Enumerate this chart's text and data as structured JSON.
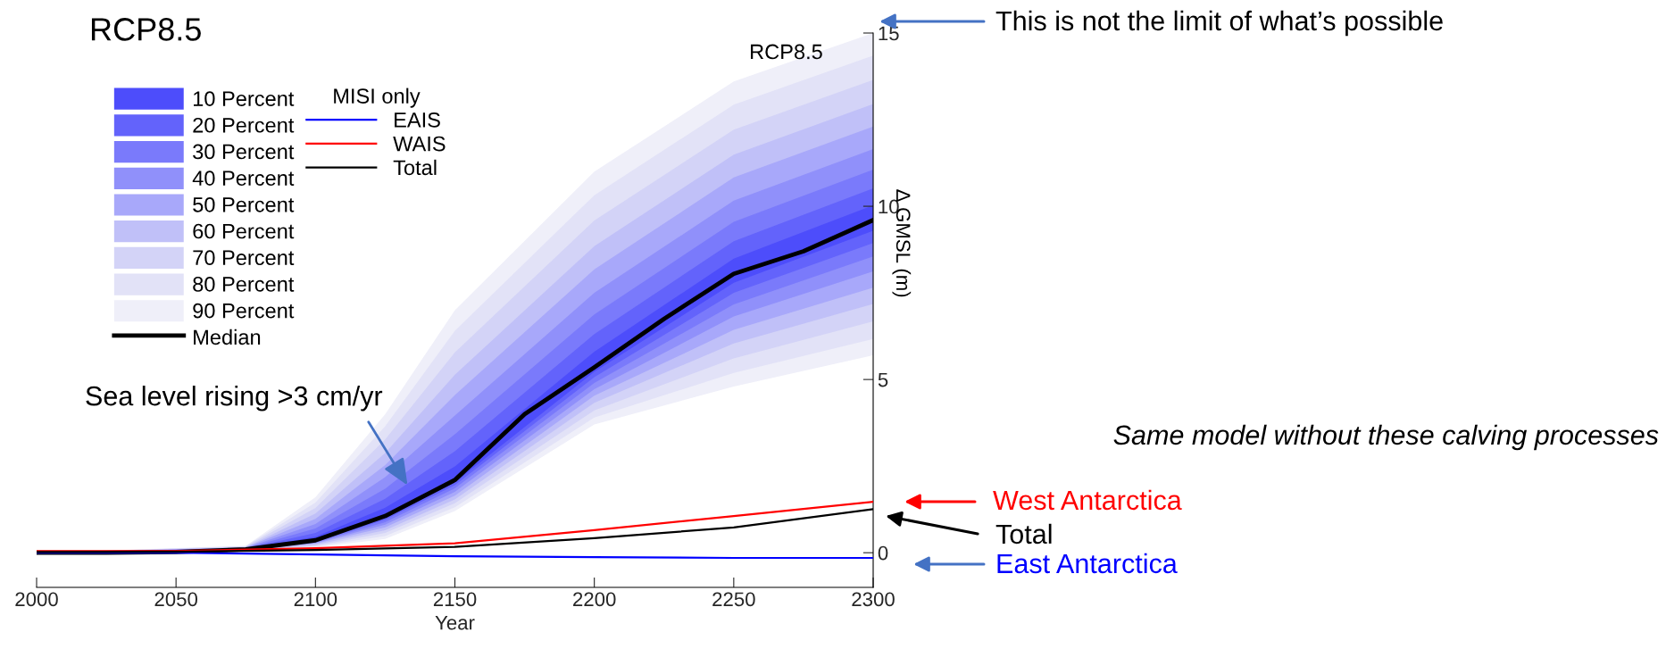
{
  "chart_data": {
    "type": "line",
    "title": "RCP8.5",
    "xlabel": "Year",
    "ylabel": "∆ GMSL (m)",
    "legend_title": "MISI only",
    "xlim": [
      2000,
      2300
    ],
    "xticks": [
      2000,
      2050,
      2100,
      2150,
      2200,
      2250,
      2300
    ],
    "ylim": [
      -1,
      15
    ],
    "yticks": [
      0,
      5,
      10,
      15
    ],
    "grid": false,
    "legend": "top left",
    "annotations": [
      "RCP8.5",
      "Same model without these calving processes",
      "This is not the limit of what’s possible",
      "West Antarctica",
      "Total",
      "East Antarctica",
      {
        "text": "Sea level rising >3 cm/yr",
        "x": 2133,
        "y": 1.95
      }
    ],
    "series": [
      {
        "name": "90 Percent",
        "color": "#efeff9",
        "x": [
          2000,
          2075,
          2100,
          2125,
          2150,
          2200,
          2250,
          2300
        ],
        "values": [
          null,
          null,
          null,
          null,
          null,
          null,
          null,
          null
        ],
        "lower": [
          0,
          0.05,
          0.15,
          0.4,
          1.2,
          3.7,
          4.8,
          5.7
        ],
        "upper": [
          0,
          0.2,
          1.6,
          4.0,
          7.0,
          11.0,
          13.6,
          15.0
        ]
      },
      {
        "name": "80 Percent",
        "color": "#e2e2f7",
        "x": [
          2000,
          2075,
          2100,
          2125,
          2150,
          2200,
          2250,
          2300
        ],
        "values": [
          null,
          null,
          null,
          null,
          null,
          null,
          null,
          null
        ],
        "lower": [
          0,
          0.06,
          0.18,
          0.48,
          1.31,
          3.9,
          5.19,
          6.17
        ],
        "upper": [
          0,
          0.19,
          1.45,
          3.65,
          6.41,
          10.32,
          12.93,
          14.35
        ]
      },
      {
        "name": "70 Percent",
        "color": "#d3d3f7",
        "x": [
          2000,
          2075,
          2100,
          2125,
          2150,
          2200,
          2250,
          2300
        ],
        "values": [
          null,
          null,
          null,
          null,
          null,
          null,
          null,
          null
        ],
        "lower": [
          0,
          0.06,
          0.2,
          0.57,
          1.43,
          4.11,
          5.61,
          6.68
        ],
        "upper": [
          0,
          0.18,
          1.29,
          3.27,
          5.78,
          9.59,
          12.21,
          13.65
        ]
      },
      {
        "name": "60 Percent",
        "color": "#c0c0f8",
        "x": [
          2000,
          2075,
          2100,
          2125,
          2150,
          2200,
          2250,
          2300
        ],
        "values": [
          null,
          null,
          null,
          null,
          null,
          null,
          null,
          null
        ],
        "lower": [
          0,
          0.07,
          0.23,
          0.65,
          1.54,
          4.33,
          6.04,
          7.18
        ],
        "upper": [
          0,
          0.16,
          1.13,
          2.88,
          5.14,
          8.85,
          11.49,
          12.95
        ]
      },
      {
        "name": "50 Percent",
        "color": "#a8a8fa",
        "x": [
          2000,
          2075,
          2100,
          2125,
          2150,
          2200,
          2250,
          2300
        ],
        "values": [
          null,
          null,
          null,
          null,
          null,
          null,
          null,
          null
        ],
        "lower": [
          0,
          0.08,
          0.26,
          0.73,
          1.65,
          4.53,
          6.43,
          7.65
        ],
        "upper": [
          0,
          0.15,
          0.98,
          2.53,
          4.55,
          8.18,
          10.83,
          12.3
        ]
      },
      {
        "name": "40 Percent",
        "color": "#9090fa",
        "x": [
          2000,
          2075,
          2100,
          2125,
          2150,
          2200,
          2250,
          2300
        ],
        "values": [
          null,
          null,
          null,
          null,
          null,
          null,
          null,
          null
        ],
        "lower": [
          0,
          0.08,
          0.28,
          0.81,
          1.76,
          4.72,
          6.82,
          8.12
        ],
        "upper": [
          0,
          0.14,
          0.83,
          2.18,
          3.96,
          7.5,
          10.16,
          11.65
        ]
      },
      {
        "name": "30 Percent",
        "color": "#7a7afb",
        "x": [
          2000,
          2075,
          2100,
          2125,
          2150,
          2200,
          2250,
          2300
        ],
        "values": [
          null,
          null,
          null,
          null,
          null,
          null,
          null,
          null
        ],
        "lower": [
          0,
          0.09,
          0.3,
          0.88,
          1.86,
          4.9,
          7.17,
          8.55
        ],
        "upper": [
          0,
          0.13,
          0.7,
          1.85,
          3.42,
          6.88,
          9.55,
          11.06
        ]
      },
      {
        "name": "20 Percent",
        "color": "#6363fb",
        "x": [
          2000,
          2075,
          2100,
          2125,
          2150,
          2200,
          2250,
          2300
        ],
        "values": [
          null,
          null,
          null,
          null,
          null,
          null,
          null,
          null
        ],
        "lower": [
          0,
          0.09,
          0.32,
          0.95,
          1.95,
          5.07,
          7.5,
          8.94
        ],
        "upper": [
          0,
          0.12,
          0.57,
          1.56,
          2.93,
          6.31,
          8.99,
          10.52
        ]
      },
      {
        "name": "10 Percent",
        "color": "#4d4dfb",
        "x": [
          2000,
          2075,
          2100,
          2125,
          2150,
          2200,
          2250,
          2300
        ],
        "values": [
          null,
          null,
          null,
          null,
          null,
          null,
          null,
          null
        ],
        "lower": [
          0,
          0.1,
          0.34,
          1.01,
          2.03,
          5.22,
          7.79,
          9.29
        ],
        "upper": [
          0,
          0.11,
          0.46,
          1.3,
          2.49,
          5.8,
          8.49,
          10.03
        ]
      },
      {
        "name": "Median",
        "color": "#000000",
        "x": [
          2000,
          2025,
          2050,
          2075,
          2100,
          2125,
          2150,
          2175,
          2200,
          2225,
          2250,
          2275,
          2300
        ],
        "values": [
          0,
          0,
          0.02,
          0.1,
          0.36,
          1.06,
          2.1,
          4.0,
          5.35,
          6.75,
          8.05,
          8.7,
          9.6
        ]
      },
      {
        "name": "EAIS",
        "color": "#0000ff",
        "x": [
          2000,
          2050,
          2100,
          2150,
          2200,
          2250,
          2300
        ],
        "values": [
          0,
          0,
          -0.05,
          -0.1,
          -0.13,
          -0.15,
          -0.15
        ]
      },
      {
        "name": "WAIS",
        "color": "#ff0000",
        "x": [
          2000,
          2050,
          2100,
          2150,
          2200,
          2250,
          2300
        ],
        "values": [
          0.05,
          0.05,
          0.13,
          0.27,
          0.65,
          1.06,
          1.47
        ]
      },
      {
        "name": "Total",
        "color": "#000000",
        "x": [
          2000,
          2050,
          2100,
          2150,
          2200,
          2250,
          2300
        ],
        "values": [
          0.02,
          0.03,
          0.08,
          0.17,
          0.42,
          0.73,
          1.26
        ]
      }
    ]
  }
}
